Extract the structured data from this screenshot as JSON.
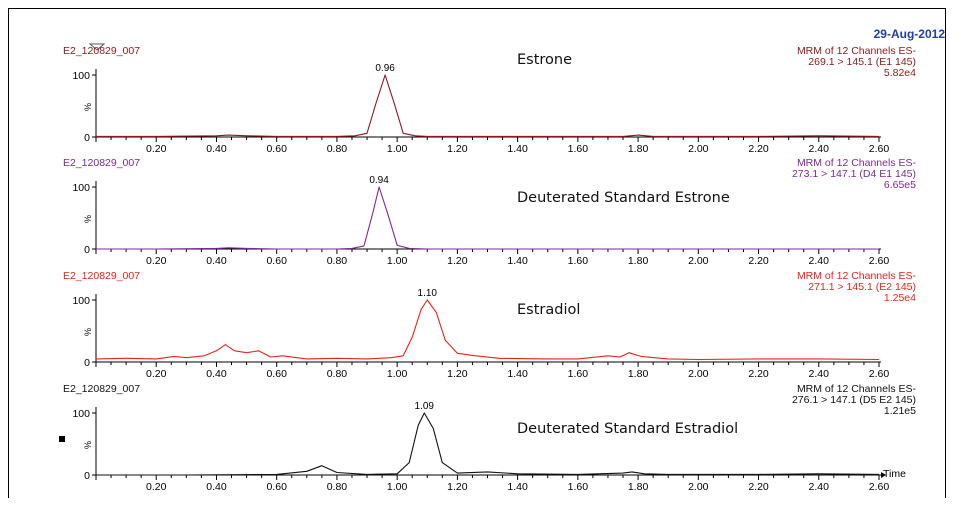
{
  "header": {
    "date": "29-Aug-2012"
  },
  "axis_label": "Time",
  "y_tick_labels": [
    "100",
    "%",
    "0"
  ],
  "panels": [
    {
      "sample": "E2_120829_007",
      "compound": "Estrone",
      "info": [
        "MRM of 12 Channels ES-",
        "269.1 > 145.1 (E1 145)",
        "5.82e4"
      ],
      "color": "#8b1a1a"
    },
    {
      "sample": "E2_120829_007",
      "compound": "Deuterated Standard Estrone",
      "info": [
        "MRM of 12 Channels ES-",
        "273.1 > 147.1 (D4 E1 145)",
        "6.65e5"
      ],
      "color": "#7b2a92"
    },
    {
      "sample": "E2_120829_007",
      "compound": "Estradiol",
      "info": [
        "MRM of 12 Channels ES-",
        "271.1 > 145.1 (E2 145)",
        "1.25e4"
      ],
      "color": "#e8231c"
    },
    {
      "sample": "E2_120829_007",
      "compound": "Deuterated Standard Estradiol",
      "info": [
        "MRM of 12 Channels ES-",
        "276.1 > 147.1 (D5 E2 145)",
        "1.21e5"
      ],
      "color": "#111111"
    }
  ],
  "chart_data": {
    "type": "line",
    "xlabel": "Time",
    "ylabel": "%",
    "xlim": [
      0,
      2.6
    ],
    "ylim": [
      0,
      100
    ],
    "x_ticks": [
      "0.20",
      "0.40",
      "0.60",
      "0.80",
      "1.00",
      "1.20",
      "1.40",
      "1.60",
      "1.80",
      "2.00",
      "2.20",
      "2.40",
      "2.60"
    ],
    "series": [
      {
        "name": "Estrone",
        "peak_label": "0.96",
        "peak_x": 0.96,
        "x": [
          0.0,
          0.2,
          0.4,
          0.44,
          0.5,
          0.6,
          0.8,
          0.86,
          0.9,
          0.93,
          0.96,
          0.99,
          1.02,
          1.06,
          1.1,
          1.3,
          1.6,
          1.75,
          1.8,
          1.85,
          2.0,
          2.2,
          2.4,
          2.6
        ],
        "y": [
          1,
          1,
          2,
          3,
          2,
          1,
          1,
          2,
          6,
          55,
          100,
          55,
          6,
          2,
          1,
          1,
          1,
          1,
          3,
          1,
          1,
          1,
          2,
          1
        ]
      },
      {
        "name": "Deuterated Standard Estrone",
        "peak_label": "0.94",
        "peak_x": 0.94,
        "x": [
          0.0,
          0.2,
          0.4,
          0.44,
          0.5,
          0.6,
          0.8,
          0.85,
          0.89,
          0.92,
          0.94,
          0.97,
          1.0,
          1.04,
          1.1,
          1.4,
          1.8,
          2.0,
          2.2,
          2.4,
          2.6
        ],
        "y": [
          0,
          0,
          1,
          2,
          1,
          0,
          0,
          1,
          5,
          60,
          100,
          55,
          6,
          1,
          0,
          0,
          0,
          0,
          0,
          0,
          0
        ]
      },
      {
        "name": "Estradiol",
        "peak_label": "1.10",
        "peak_x": 1.1,
        "x": [
          0.0,
          0.1,
          0.2,
          0.26,
          0.3,
          0.36,
          0.4,
          0.43,
          0.46,
          0.5,
          0.54,
          0.58,
          0.62,
          0.7,
          0.8,
          0.9,
          0.98,
          1.02,
          1.05,
          1.08,
          1.1,
          1.13,
          1.16,
          1.2,
          1.26,
          1.34,
          1.5,
          1.6,
          1.7,
          1.74,
          1.77,
          1.81,
          1.9,
          2.0,
          2.2,
          2.4,
          2.6
        ],
        "y": [
          5,
          6,
          5,
          9,
          7,
          10,
          18,
          28,
          18,
          15,
          18,
          8,
          10,
          5,
          6,
          5,
          7,
          10,
          40,
          85,
          100,
          80,
          35,
          14,
          10,
          6,
          5,
          5,
          10,
          8,
          15,
          9,
          5,
          4,
          5,
          5,
          4
        ]
      },
      {
        "name": "Deuterated Standard Estradiol",
        "peak_label": "1.09",
        "peak_x": 1.09,
        "x": [
          0.0,
          0.3,
          0.6,
          0.7,
          0.75,
          0.8,
          0.9,
          1.0,
          1.04,
          1.07,
          1.09,
          1.12,
          1.15,
          1.2,
          1.3,
          1.4,
          1.6,
          1.75,
          1.78,
          1.82,
          1.9,
          2.2,
          2.4,
          2.6
        ],
        "y": [
          0,
          0,
          1,
          6,
          15,
          4,
          1,
          2,
          20,
          80,
          100,
          75,
          20,
          3,
          5,
          2,
          1,
          3,
          5,
          2,
          1,
          1,
          2,
          1
        ]
      }
    ]
  }
}
